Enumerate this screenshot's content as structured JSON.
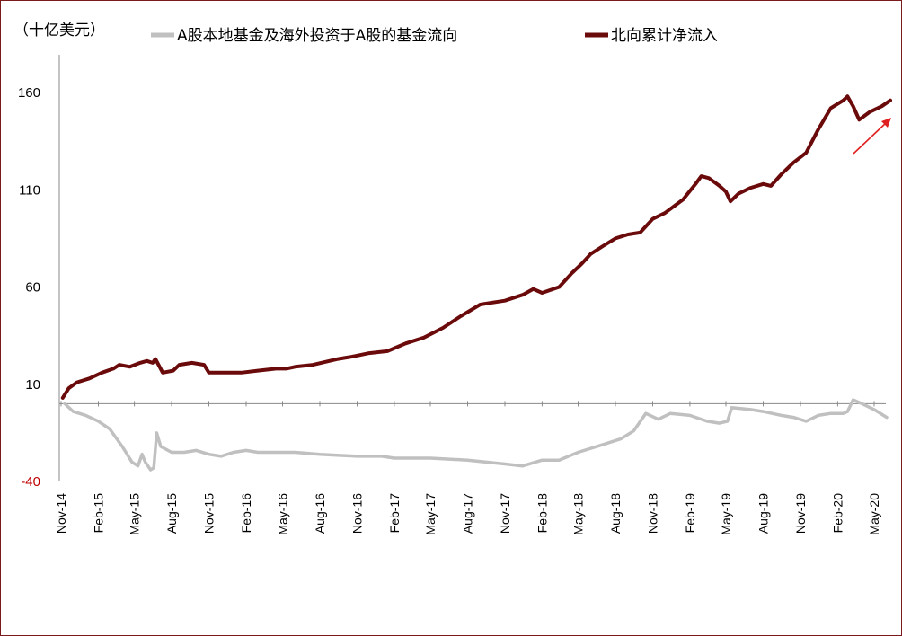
{
  "chart_data": {
    "type": "line",
    "unit_label": "（十亿美元）",
    "ylim": [
      -40,
      180
    ],
    "yticks": [
      {
        "value": 160,
        "label": "160"
      },
      {
        "value": 110,
        "label": "110"
      },
      {
        "value": 60,
        "label": "60"
      },
      {
        "value": 10,
        "label": "10"
      },
      {
        "value": -40,
        "label": "-40"
      }
    ],
    "x_start": "2014-11",
    "x_end": "2020-06",
    "xticks": [
      {
        "date": "2014-11",
        "label": "Nov-14"
      },
      {
        "date": "2015-02",
        "label": "Feb-15"
      },
      {
        "date": "2015-05",
        "label": "May-15"
      },
      {
        "date": "2015-08",
        "label": "Aug-15"
      },
      {
        "date": "2015-11",
        "label": "Nov-15"
      },
      {
        "date": "2016-02",
        "label": "Feb-16"
      },
      {
        "date": "2016-05",
        "label": "May-16"
      },
      {
        "date": "2016-08",
        "label": "Aug-16"
      },
      {
        "date": "2016-11",
        "label": "Nov-16"
      },
      {
        "date": "2017-02",
        "label": "Feb-17"
      },
      {
        "date": "2017-05",
        "label": "May-17"
      },
      {
        "date": "2017-08",
        "label": "Aug-17"
      },
      {
        "date": "2017-11",
        "label": "Nov-17"
      },
      {
        "date": "2018-02",
        "label": "Feb-18"
      },
      {
        "date": "2018-05",
        "label": "May-18"
      },
      {
        "date": "2018-08",
        "label": "Aug-18"
      },
      {
        "date": "2018-11",
        "label": "Nov-18"
      },
      {
        "date": "2019-02",
        "label": "Feb-19"
      },
      {
        "date": "2019-05",
        "label": "May-19"
      },
      {
        "date": "2019-08",
        "label": "Aug-19"
      },
      {
        "date": "2019-11",
        "label": "Nov-19"
      },
      {
        "date": "2020-02",
        "label": "Feb-20"
      },
      {
        "date": "2020-05",
        "label": "May-20"
      }
    ],
    "series": [
      {
        "name": "A股本地基金及海外投资于A股的基金流向",
        "color": "#c0c0c0",
        "points": [
          [
            "2014-11-10",
            0
          ],
          [
            "2014-12-01",
            -4
          ],
          [
            "2015-01-01",
            -6
          ],
          [
            "2015-02-01",
            -9
          ],
          [
            "2015-03-01",
            -13
          ],
          [
            "2015-04-01",
            -22
          ],
          [
            "2015-04-25",
            -30
          ],
          [
            "2015-05-10",
            -32
          ],
          [
            "2015-05-20",
            -26
          ],
          [
            "2015-05-28",
            -30
          ],
          [
            "2015-06-10",
            -34
          ],
          [
            "2015-06-18",
            -33
          ],
          [
            "2015-06-25",
            -15
          ],
          [
            "2015-07-05",
            -22
          ],
          [
            "2015-08-01",
            -25
          ],
          [
            "2015-09-01",
            -25
          ],
          [
            "2015-10-01",
            -24
          ],
          [
            "2015-11-01",
            -26
          ],
          [
            "2015-12-01",
            -27
          ],
          [
            "2016-01-01",
            -25
          ],
          [
            "2016-02-01",
            -24
          ],
          [
            "2016-03-01",
            -25
          ],
          [
            "2016-05-01",
            -25
          ],
          [
            "2016-06-01",
            -25
          ],
          [
            "2016-08-01",
            -26
          ],
          [
            "2016-11-01",
            -27
          ],
          [
            "2017-01-01",
            -27
          ],
          [
            "2017-02-01",
            -28
          ],
          [
            "2017-05-01",
            -28
          ],
          [
            "2017-08-01",
            -29
          ],
          [
            "2017-11-01",
            -31
          ],
          [
            "2017-12-15",
            -32
          ],
          [
            "2018-02-01",
            -29
          ],
          [
            "2018-03-15",
            -29
          ],
          [
            "2018-05-01",
            -25
          ],
          [
            "2018-07-01",
            -21
          ],
          [
            "2018-08-15",
            -18
          ],
          [
            "2018-09-15",
            -14
          ],
          [
            "2018-10-15",
            -5
          ],
          [
            "2018-11-15",
            -8
          ],
          [
            "2018-12-15",
            -5
          ],
          [
            "2019-02-01",
            -6
          ],
          [
            "2019-03-15",
            -9
          ],
          [
            "2019-04-15",
            -10
          ],
          [
            "2019-05-05",
            -9
          ],
          [
            "2019-05-15",
            -2
          ],
          [
            "2019-07-01",
            -3
          ],
          [
            "2019-08-01",
            -4
          ],
          [
            "2019-09-15",
            -6
          ],
          [
            "2019-10-15",
            -7
          ],
          [
            "2019-11-15",
            -9
          ],
          [
            "2019-12-15",
            -6
          ],
          [
            "2020-01-15",
            -5
          ],
          [
            "2020-02-15",
            -5
          ],
          [
            "2020-02-25",
            -4
          ],
          [
            "2020-03-10",
            2
          ],
          [
            "2020-04-01",
            0
          ],
          [
            "2020-05-01",
            -3
          ],
          [
            "2020-06-01",
            -7
          ]
        ]
      },
      {
        "name": "北向累计净流入",
        "color": "#6b0a0a",
        "points": [
          [
            "2014-11-05",
            3
          ],
          [
            "2014-11-20",
            8
          ],
          [
            "2014-12-10",
            11
          ],
          [
            "2015-01-10",
            13
          ],
          [
            "2015-02-10",
            16
          ],
          [
            "2015-03-10",
            18
          ],
          [
            "2015-03-25",
            20
          ],
          [
            "2015-04-20",
            19
          ],
          [
            "2015-05-15",
            21
          ],
          [
            "2015-06-01",
            22
          ],
          [
            "2015-06-15",
            21
          ],
          [
            "2015-06-22",
            23
          ],
          [
            "2015-07-10",
            16
          ],
          [
            "2015-08-05",
            17
          ],
          [
            "2015-08-20",
            20
          ],
          [
            "2015-09-20",
            21
          ],
          [
            "2015-10-20",
            20
          ],
          [
            "2015-11-01",
            16
          ],
          [
            "2015-12-15",
            16
          ],
          [
            "2016-01-20",
            16
          ],
          [
            "2016-03-01",
            17
          ],
          [
            "2016-04-15",
            18
          ],
          [
            "2016-05-10",
            18
          ],
          [
            "2016-06-01",
            19
          ],
          [
            "2016-07-15",
            20
          ],
          [
            "2016-09-15",
            23
          ],
          [
            "2016-10-15",
            24
          ],
          [
            "2016-12-01",
            26
          ],
          [
            "2017-01-15",
            27
          ],
          [
            "2017-03-01",
            31
          ],
          [
            "2017-04-15",
            34
          ],
          [
            "2017-06-01",
            39
          ],
          [
            "2017-07-15",
            45
          ],
          [
            "2017-09-01",
            51
          ],
          [
            "2017-10-01",
            52
          ],
          [
            "2017-11-01",
            53
          ],
          [
            "2017-12-15",
            56
          ],
          [
            "2018-01-10",
            59
          ],
          [
            "2018-02-01",
            57
          ],
          [
            "2018-03-15",
            60
          ],
          [
            "2018-04-15",
            67
          ],
          [
            "2018-05-10",
            72
          ],
          [
            "2018-06-01",
            77
          ],
          [
            "2018-07-01",
            81
          ],
          [
            "2018-08-01",
            85
          ],
          [
            "2018-09-01",
            87
          ],
          [
            "2018-10-01",
            88
          ],
          [
            "2018-11-01",
            95
          ],
          [
            "2018-12-01",
            98
          ],
          [
            "2019-01-15",
            105
          ],
          [
            "2019-02-15",
            113
          ],
          [
            "2019-03-01",
            117
          ],
          [
            "2019-03-20",
            116
          ],
          [
            "2019-04-15",
            112
          ],
          [
            "2019-05-01",
            109
          ],
          [
            "2019-05-12",
            104
          ],
          [
            "2019-06-01",
            108
          ],
          [
            "2019-07-01",
            111
          ],
          [
            "2019-08-01",
            113
          ],
          [
            "2019-08-20",
            112
          ],
          [
            "2019-09-15",
            118
          ],
          [
            "2019-10-15",
            124
          ],
          [
            "2019-11-15",
            129
          ],
          [
            "2019-12-15",
            141
          ],
          [
            "2020-01-15",
            152
          ],
          [
            "2020-02-15",
            156
          ],
          [
            "2020-02-25",
            158
          ],
          [
            "2020-03-10",
            153
          ],
          [
            "2020-03-25",
            146
          ],
          [
            "2020-04-20",
            150
          ],
          [
            "2020-05-20",
            153
          ],
          [
            "2020-06-10",
            156
          ]
        ]
      }
    ]
  }
}
